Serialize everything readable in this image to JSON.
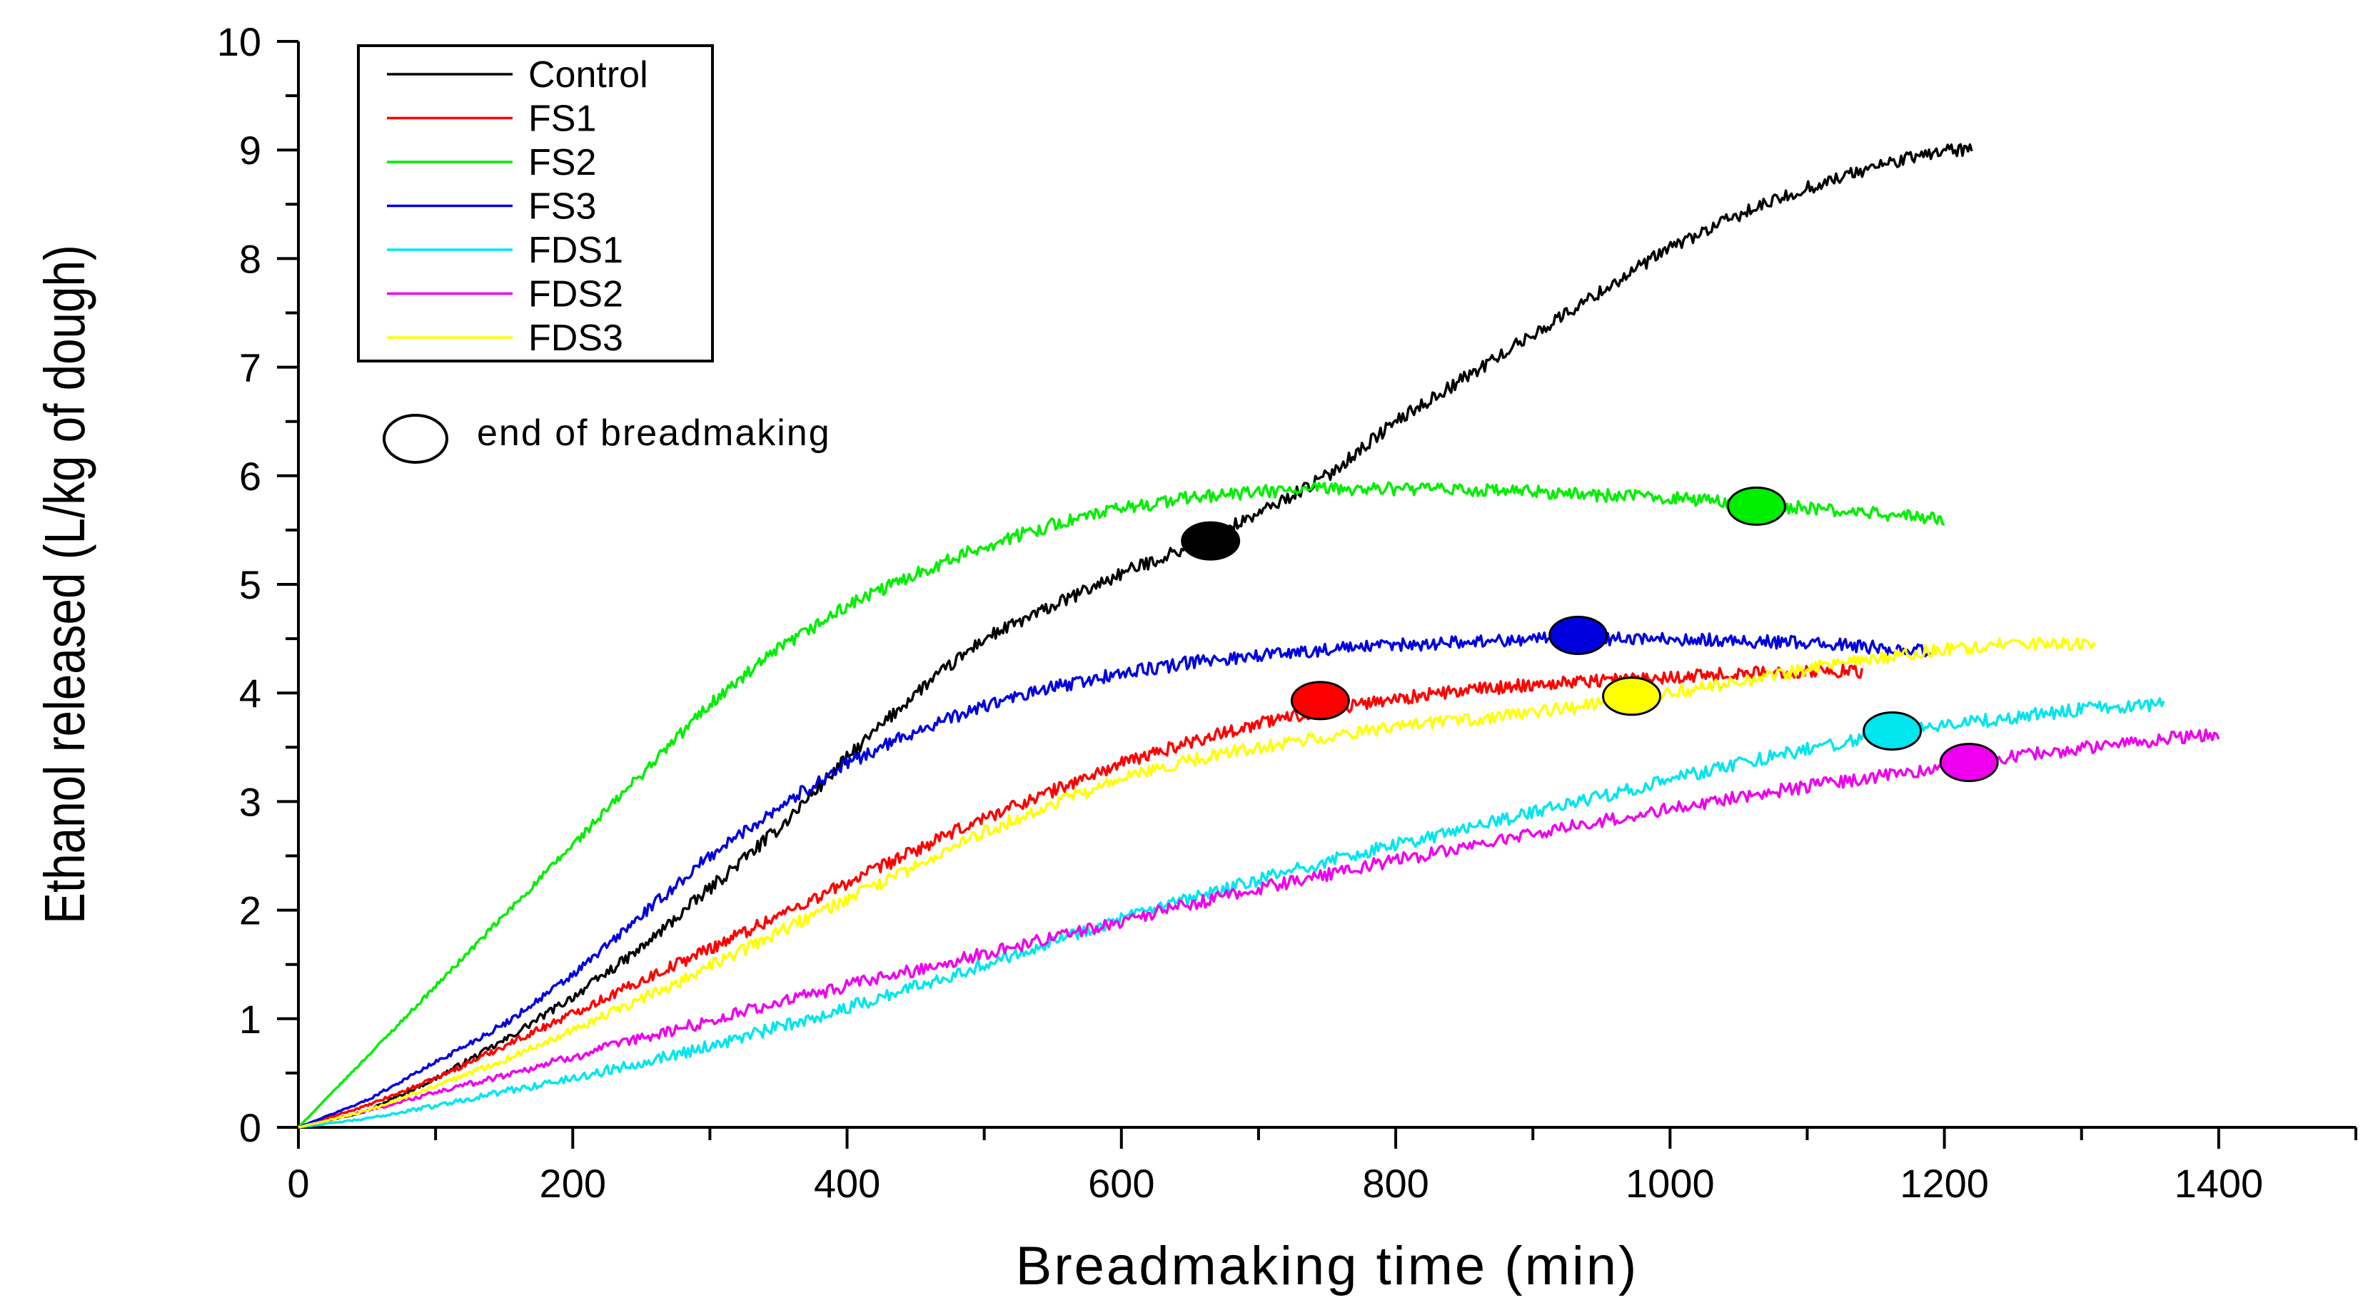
{
  "chart_data": {
    "type": "line",
    "title": "",
    "xlabel": "Breadmaking time (min)",
    "ylabel": "Ethanol released (L/kg of dough)",
    "xlim": [
      0,
      1500
    ],
    "ylim": [
      0,
      10
    ],
    "x_ticks": [
      0,
      200,
      400,
      600,
      800,
      1000,
      1200,
      1400
    ],
    "y_ticks": [
      0,
      1,
      2,
      3,
      4,
      5,
      6,
      7,
      8,
      9,
      10
    ],
    "grid": false,
    "legend_position": "top-left",
    "series": [
      {
        "name": "Control",
        "color": "#000000",
        "x": [
          0,
          50,
          100,
          150,
          200,
          250,
          300,
          350,
          400,
          450,
          500,
          550,
          600,
          650,
          700,
          750,
          800,
          850,
          900,
          950,
          1000,
          1050,
          1100,
          1150,
          1200,
          1220
        ],
        "y": [
          0,
          0.15,
          0.45,
          0.8,
          1.2,
          1.65,
          2.2,
          2.75,
          3.4,
          4.0,
          4.5,
          4.8,
          5.1,
          5.35,
          5.65,
          6.0,
          6.5,
          6.9,
          7.3,
          7.7,
          8.1,
          8.4,
          8.65,
          8.85,
          9.0,
          9.0
        ]
      },
      {
        "name": "FS1",
        "color": "#ff0000",
        "x": [
          0,
          50,
          100,
          150,
          200,
          250,
          300,
          350,
          400,
          450,
          500,
          550,
          600,
          650,
          700,
          750,
          800,
          850,
          900,
          950,
          1000,
          1050,
          1100,
          1140
        ],
        "y": [
          0,
          0.2,
          0.45,
          0.75,
          1.05,
          1.35,
          1.65,
          1.95,
          2.25,
          2.55,
          2.85,
          3.1,
          3.35,
          3.55,
          3.72,
          3.85,
          3.95,
          4.02,
          4.08,
          4.12,
          4.15,
          4.18,
          4.2,
          4.2
        ]
      },
      {
        "name": "FS2",
        "color": "#00ee00",
        "x": [
          0,
          50,
          100,
          150,
          200,
          250,
          300,
          350,
          400,
          450,
          500,
          550,
          600,
          650,
          700,
          750,
          800,
          850,
          900,
          950,
          1000,
          1050,
          1100,
          1150,
          1200
        ],
        "y": [
          0,
          0.65,
          1.3,
          1.95,
          2.6,
          3.25,
          3.9,
          4.4,
          4.8,
          5.1,
          5.35,
          5.55,
          5.7,
          5.8,
          5.85,
          5.88,
          5.88,
          5.87,
          5.85,
          5.82,
          5.8,
          5.75,
          5.7,
          5.65,
          5.6
        ]
      },
      {
        "name": "FS3",
        "color": "#0000dd",
        "x": [
          0,
          50,
          100,
          150,
          200,
          250,
          300,
          350,
          400,
          450,
          500,
          550,
          600,
          650,
          700,
          750,
          800,
          850,
          900,
          950,
          1000,
          1050,
          1100,
          1150,
          1190
        ],
        "y": [
          0,
          0.25,
          0.6,
          0.95,
          1.4,
          1.95,
          2.5,
          2.95,
          3.35,
          3.65,
          3.88,
          4.05,
          4.18,
          4.28,
          4.35,
          4.4,
          4.44,
          4.47,
          4.5,
          4.5,
          4.5,
          4.48,
          4.46,
          4.42,
          4.38
        ]
      },
      {
        "name": "FDS1",
        "color": "#00e5ee",
        "x": [
          0,
          50,
          100,
          150,
          200,
          250,
          300,
          350,
          400,
          450,
          500,
          550,
          600,
          650,
          700,
          750,
          800,
          850,
          900,
          950,
          1000,
          1050,
          1100,
          1150,
          1200,
          1250,
          1300,
          1360
        ],
        "y": [
          0,
          0.08,
          0.2,
          0.33,
          0.45,
          0.6,
          0.75,
          0.92,
          1.1,
          1.3,
          1.5,
          1.72,
          1.92,
          2.1,
          2.28,
          2.45,
          2.6,
          2.75,
          2.9,
          3.05,
          3.2,
          3.35,
          3.48,
          3.6,
          3.7,
          3.78,
          3.85,
          3.9
        ]
      },
      {
        "name": "FDS2",
        "color": "#ee00ee",
        "x": [
          0,
          50,
          100,
          150,
          200,
          250,
          300,
          350,
          400,
          450,
          500,
          550,
          600,
          650,
          700,
          750,
          800,
          850,
          900,
          950,
          1000,
          1050,
          1100,
          1150,
          1200,
          1250,
          1300,
          1350,
          1400
        ],
        "y": [
          0,
          0.15,
          0.32,
          0.48,
          0.65,
          0.82,
          0.98,
          1.15,
          1.3,
          1.45,
          1.6,
          1.75,
          1.9,
          2.05,
          2.2,
          2.33,
          2.46,
          2.58,
          2.7,
          2.82,
          2.93,
          3.04,
          3.14,
          3.23,
          3.32,
          3.41,
          3.49,
          3.56,
          3.63
        ]
      },
      {
        "name": "FDS3",
        "color": "#ffff00",
        "x": [
          0,
          50,
          100,
          150,
          200,
          250,
          300,
          350,
          400,
          450,
          500,
          550,
          600,
          650,
          700,
          750,
          800,
          850,
          900,
          950,
          1000,
          1050,
          1100,
          1150,
          1200,
          1250,
          1310
        ],
        "y": [
          0,
          0.15,
          0.38,
          0.62,
          0.9,
          1.18,
          1.48,
          1.8,
          2.1,
          2.4,
          2.72,
          2.98,
          3.2,
          3.38,
          3.5,
          3.6,
          3.68,
          3.75,
          3.82,
          3.9,
          4.0,
          4.1,
          4.22,
          4.32,
          4.4,
          4.45,
          4.45
        ]
      }
    ],
    "end_of_breadmaking_markers": [
      {
        "series": "Control",
        "x": 665,
        "y": 5.4,
        "color": "#000000"
      },
      {
        "series": "FS1",
        "x": 745,
        "y": 3.93,
        "color": "#ff0000"
      },
      {
        "series": "FS2",
        "x": 1063,
        "y": 5.72,
        "color": "#00ee00"
      },
      {
        "series": "FS3",
        "x": 933,
        "y": 4.53,
        "color": "#0000dd"
      },
      {
        "series": "FDS1",
        "x": 1162,
        "y": 3.65,
        "color": "#00e5ee"
      },
      {
        "series": "FDS2",
        "x": 1218,
        "y": 3.36,
        "color": "#ee00ee"
      },
      {
        "series": "FDS3",
        "x": 972,
        "y": 3.97,
        "color": "#ffff00"
      }
    ],
    "annotations": [
      {
        "text": "end of breadmaking",
        "marker": "open-circle"
      }
    ]
  }
}
